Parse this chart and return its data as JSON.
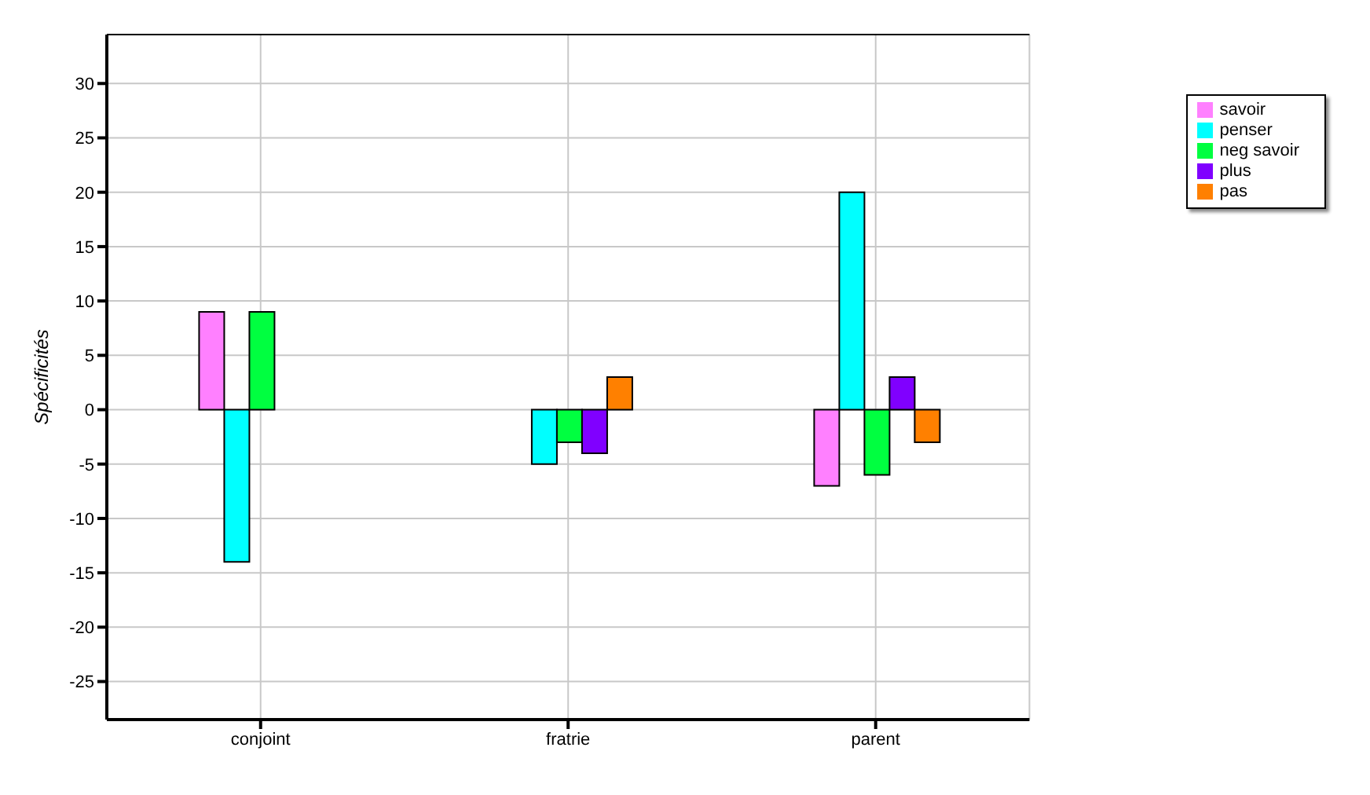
{
  "chart_data": {
    "type": "bar",
    "ylabel": "Spécificités",
    "categories": [
      "conjoint",
      "fratrie",
      "parent"
    ],
    "series": [
      {
        "name": "savoir",
        "color": "#ff80ff",
        "values": [
          9,
          0,
          -7
        ]
      },
      {
        "name": "penser",
        "color": "#00ffff",
        "values": [
          -14,
          -5,
          20
        ]
      },
      {
        "name": "neg savoir",
        "color": "#00ff40",
        "values": [
          9,
          -3,
          -6
        ]
      },
      {
        "name": "plus",
        "color": "#8000ff",
        "values": [
          0,
          -4,
          3
        ]
      },
      {
        "name": "pas",
        "color": "#ff8000",
        "values": [
          0,
          3,
          -3
        ]
      }
    ],
    "ylim": [
      -28.5,
      34.5
    ],
    "yticks": [
      -25,
      -20,
      -15,
      -10,
      -5,
      0,
      5,
      10,
      15,
      20,
      25,
      30
    ],
    "grid": true,
    "legend": "top right"
  }
}
